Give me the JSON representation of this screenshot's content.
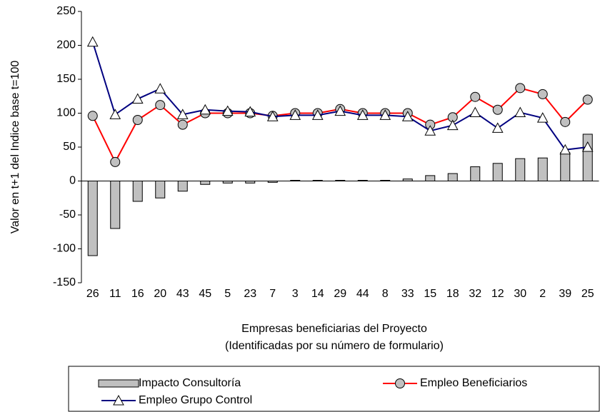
{
  "chart_data": {
    "type": "combo",
    "ylabel": "Valor en t+1 del Indice base t=100",
    "xlabel": [
      "Empresas beneficiarias del Proyecto",
      "(Identificadas por su número de formulario)"
    ],
    "categories": [
      "26",
      "11",
      "16",
      "20",
      "43",
      "45",
      "5",
      "23",
      "7",
      "3",
      "14",
      "29",
      "44",
      "8",
      "33",
      "15",
      "18",
      "32",
      "12",
      "30",
      "2",
      "39",
      "25"
    ],
    "ylim": [
      -150,
      250
    ],
    "yticks": [
      -150,
      -100,
      -50,
      0,
      50,
      100,
      150,
      200,
      250
    ],
    "grid": false,
    "series": [
      {
        "name": "Impacto Consultoría",
        "type": "bar",
        "color": "#c0c0c0",
        "values": [
          -110,
          -70,
          -30,
          -25,
          -15,
          -5,
          -3,
          -3,
          -2,
          1,
          1,
          1,
          1,
          1,
          3,
          8,
          11,
          21,
          26,
          33,
          34,
          42,
          69
        ]
      },
      {
        "name": "Empleo Beneficiarios",
        "type": "line",
        "marker": "circle",
        "color": "#ff0000",
        "values": [
          96,
          28,
          90,
          112,
          83,
          100,
          100,
          100,
          96,
          100,
          100,
          106,
          100,
          100,
          100,
          83,
          94,
          124,
          105,
          137,
          128,
          87,
          120
        ]
      },
      {
        "name": "Empleo Grupo Control",
        "type": "line",
        "marker": "triangle",
        "color": "#000080",
        "values": [
          205,
          98,
          121,
          136,
          98,
          105,
          103,
          102,
          95,
          97,
          97,
          103,
          97,
          97,
          95,
          74,
          82,
          101,
          78,
          101,
          93,
          46,
          50
        ]
      }
    ]
  }
}
